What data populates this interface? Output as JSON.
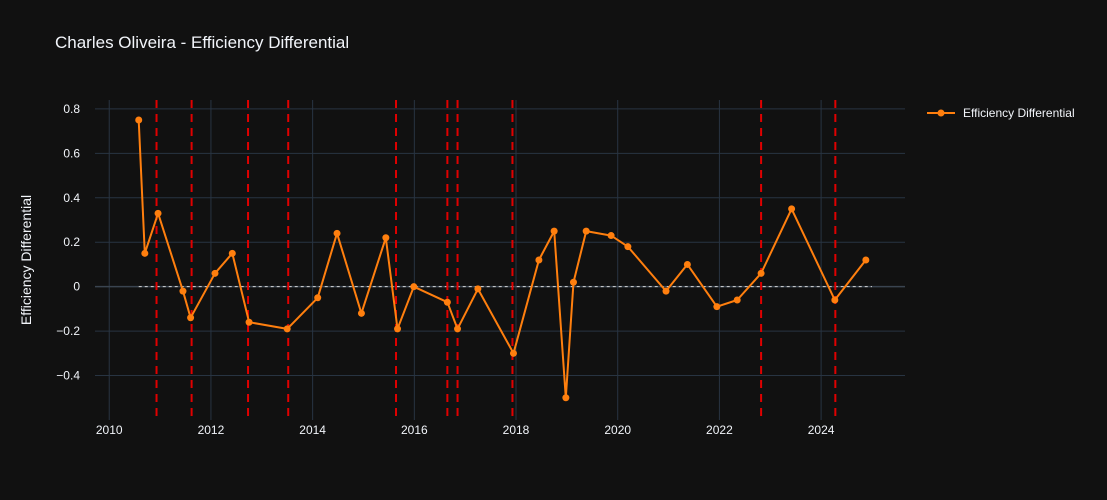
{
  "chart_data": {
    "type": "line",
    "title": "Charles Oliveira - Efficiency Differential",
    "xlabel": "",
    "ylabel": "Efficiency Differential",
    "xlim": [
      2009.72,
      2025.65
    ],
    "ylim": [
      -0.6,
      0.84
    ],
    "x_ticks": [
      2010,
      2012,
      2014,
      2016,
      2018,
      2020,
      2022,
      2024
    ],
    "x_tick_labels": [
      "2010",
      "2012",
      "2014",
      "2016",
      "2018",
      "2020",
      "2022",
      "2024"
    ],
    "y_ticks": [
      0.8,
      0.6,
      0.4,
      0.2,
      0,
      -0.2,
      -0.4
    ],
    "y_tick_labels": [
      "0.8",
      "0.6",
      "0.4",
      "0.2",
      "0",
      "−0.2",
      "−0.4"
    ],
    "grid": true,
    "legend_position": "top-right",
    "zero_line": {
      "y": 0,
      "x_range": [
        2010.58,
        2025.0
      ]
    },
    "series": [
      {
        "name": "Efficiency Differential",
        "color": "#ff7f0e",
        "x": [
          2010.58,
          2010.7,
          2010.96,
          2011.45,
          2011.6,
          2012.08,
          2012.42,
          2012.75,
          2013.5,
          2014.1,
          2014.48,
          2014.96,
          2015.44,
          2015.67,
          2015.99,
          2016.65,
          2016.85,
          2017.25,
          2017.95,
          2018.45,
          2018.75,
          2018.98,
          2019.13,
          2019.38,
          2019.87,
          2020.2,
          2020.95,
          2021.37,
          2021.95,
          2022.35,
          2022.82,
          2023.42,
          2024.27,
          2024.88
        ],
        "values": [
          0.75,
          0.15,
          0.33,
          -0.02,
          -0.14,
          0.06,
          0.15,
          -0.16,
          -0.19,
          -0.05,
          0.24,
          -0.12,
          0.22,
          -0.19,
          0.0,
          -0.07,
          -0.19,
          -0.01,
          -0.3,
          0.12,
          0.25,
          -0.5,
          0.02,
          0.25,
          0.23,
          0.18,
          -0.02,
          0.1,
          -0.09,
          -0.06,
          0.06,
          0.35,
          -0.06,
          0.12
        ]
      }
    ],
    "vertical_markers": {
      "color": "#e00000",
      "x": [
        2010.93,
        2011.62,
        2012.73,
        2013.52,
        2015.64,
        2016.65,
        2016.85,
        2017.93,
        2022.82,
        2024.28
      ]
    }
  }
}
